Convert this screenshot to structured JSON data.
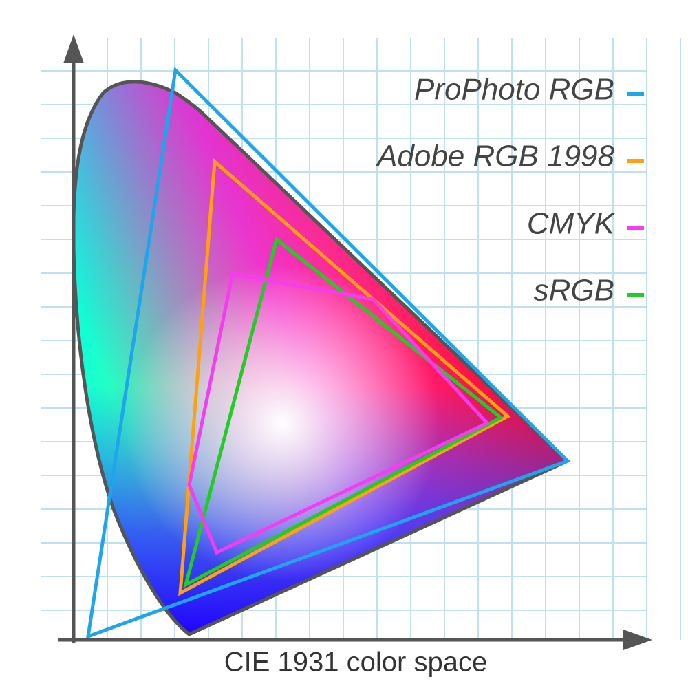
{
  "title": "CIE 1931 color space",
  "legend": [
    {
      "label": "ProPhoto RGB",
      "color": "#1ea5ea"
    },
    {
      "label": "Adobe RGB 1998",
      "color": "#ffa010"
    },
    {
      "label": "CMYK",
      "color": "#f53cf0"
    },
    {
      "label": "sRGB",
      "color": "#22cc22"
    }
  ]
}
